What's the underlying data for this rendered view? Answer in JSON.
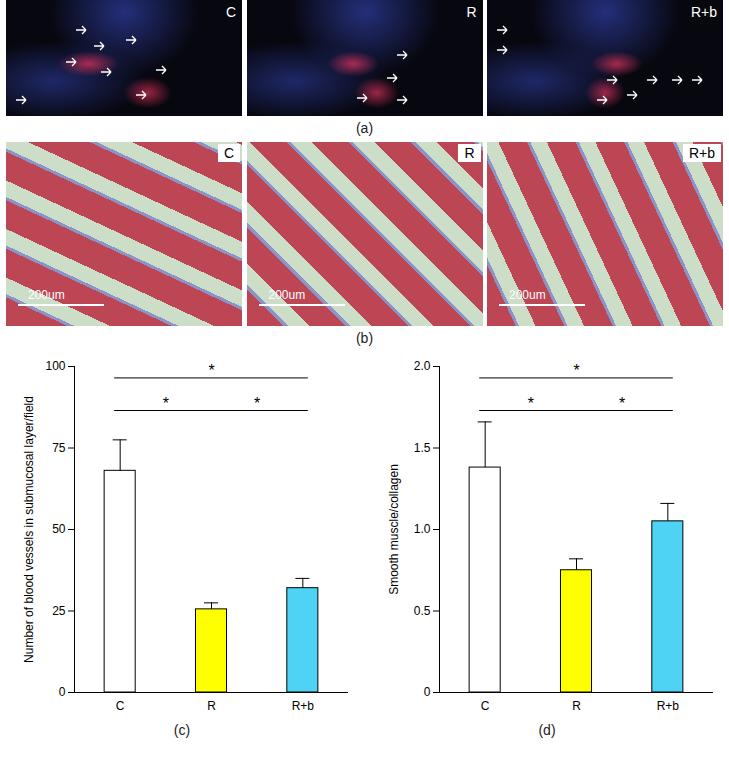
{
  "image_panels": [
    {
      "label": "(a)",
      "tiles": [
        "C",
        "R",
        "R+b"
      ]
    },
    {
      "label": "(b)",
      "tiles": [
        "C",
        "R",
        "R+b"
      ],
      "scale_bar": "200um"
    }
  ],
  "chart_data": [
    {
      "type": "bar",
      "title": "(c)",
      "y_label": "Number of blood vessels in submucosal layer/field",
      "categories": [
        "C",
        "R",
        "R+b"
      ],
      "values": [
        68,
        25.5,
        32
      ],
      "errors": [
        9.5,
        2,
        3
      ],
      "colors": [
        "#ffffff",
        "#ffff00",
        "#4fd3f5"
      ],
      "ylim": [
        0,
        100
      ],
      "yticks": [
        0,
        25,
        50,
        75,
        100
      ],
      "annotations": [
        {
          "from": "C",
          "to": "R",
          "text": "*"
        },
        {
          "from": "R",
          "to": "R+b",
          "text": "*"
        },
        {
          "from": "C",
          "to": "R+b",
          "text": "*"
        }
      ]
    },
    {
      "type": "bar",
      "title": "(d)",
      "y_label": "Smooth muscle/collagen",
      "categories": [
        "C",
        "R",
        "R+b"
      ],
      "values": [
        1.38,
        0.75,
        1.05
      ],
      "errors": [
        0.28,
        0.07,
        0.11
      ],
      "colors": [
        "#ffffff",
        "#ffff00",
        "#4fd3f5"
      ],
      "ylim": [
        0,
        2
      ],
      "yticks": [
        0,
        0.5,
        {
          "value": 1,
          "label": "1.0"
        },
        1.5,
        {
          "value": 2,
          "label": "2.0"
        }
      ],
      "annotations": [
        {
          "from": "C",
          "to": "R",
          "text": "*"
        },
        {
          "from": "R",
          "to": "R+b",
          "text": "*"
        },
        {
          "from": "C",
          "to": "R+b",
          "text": "*"
        }
      ]
    }
  ]
}
